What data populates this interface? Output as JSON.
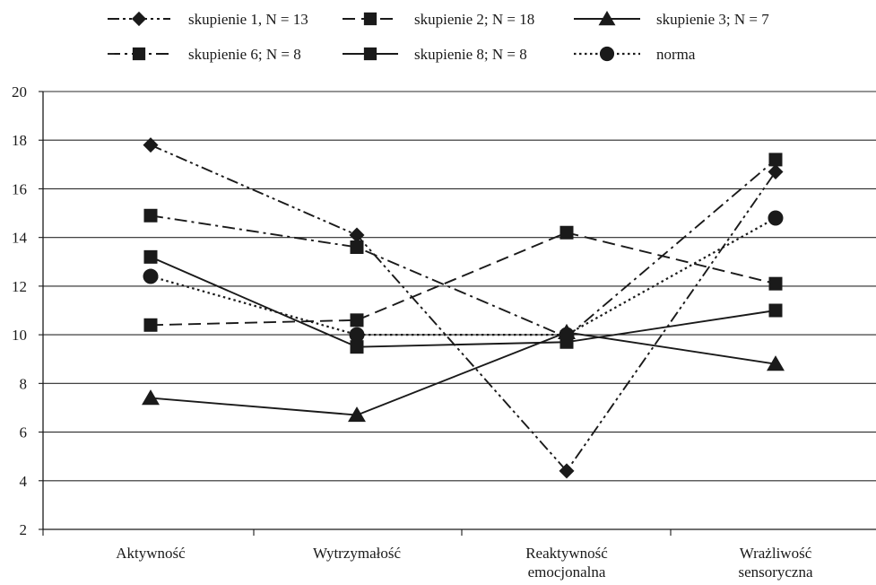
{
  "chart_data": {
    "type": "line",
    "title": "",
    "xlabel": "",
    "ylabel": "",
    "ylim": [
      2,
      20
    ],
    "yticks": [
      2,
      4,
      6,
      8,
      10,
      12,
      14,
      16,
      18,
      20
    ],
    "grid": "horizontal",
    "legend_position": "top",
    "categories": [
      [
        "Aktywność"
      ],
      [
        "Wytrzymałość"
      ],
      [
        "Reaktywność",
        "emocjonalna"
      ],
      [
        "Wrażliwość",
        "sensoryczna"
      ]
    ],
    "series": [
      {
        "name": "skupienie 1, N = 13",
        "marker": "diamond",
        "dash": "dash-dot-dot",
        "values": [
          17.8,
          14.1,
          4.4,
          16.7
        ]
      },
      {
        "name": "skupienie 2; N = 18",
        "marker": "square",
        "dash": "dash",
        "values": [
          10.4,
          10.6,
          14.2,
          12.1
        ]
      },
      {
        "name": "skupienie 3; N = 7",
        "marker": "triangle",
        "dash": "solid",
        "values": [
          7.4,
          6.7,
          10.1,
          8.8
        ]
      },
      {
        "name": "skupienie 6; N = 8",
        "marker": "square",
        "dash": "dash-dot",
        "values": [
          14.9,
          13.6,
          9.9,
          17.2
        ]
      },
      {
        "name": "skupienie 8; N = 8",
        "marker": "square",
        "dash": "solid",
        "values": [
          13.2,
          9.5,
          9.7,
          11.0
        ]
      },
      {
        "name": "norma",
        "marker": "circle",
        "dash": "dot",
        "values": [
          12.4,
          10.0,
          10.0,
          14.8
        ]
      }
    ],
    "colors": {
      "line": "#1a1a1a",
      "grid": "#2a2a2a"
    }
  }
}
